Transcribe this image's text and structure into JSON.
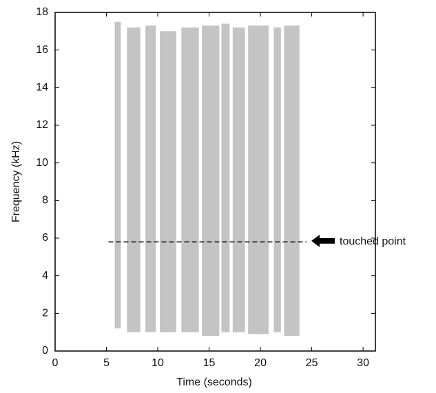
{
  "chart_data": {
    "type": "spectrogram",
    "xlabel": "Time (seconds)",
    "ylabel": "Frequency (kHz)",
    "xlim": [
      0,
      31.2
    ],
    "ylim": [
      0,
      18
    ],
    "xticks": [
      0,
      5,
      10,
      15,
      20,
      25,
      30
    ],
    "yticks": [
      0,
      2,
      4,
      6,
      8,
      10,
      12,
      14,
      16,
      18
    ],
    "color": "#555555",
    "bursts": [
      {
        "start": 5.8,
        "end": 6.4,
        "fmin": 1.2,
        "fmax": 17.5
      },
      {
        "start": 7.0,
        "end": 8.3,
        "fmin": 1.0,
        "fmax": 17.2
      },
      {
        "start": 8.8,
        "end": 9.8,
        "fmin": 1.0,
        "fmax": 17.3
      },
      {
        "start": 10.2,
        "end": 11.8,
        "fmin": 1.0,
        "fmax": 17.0
      },
      {
        "start": 12.3,
        "end": 14.0,
        "fmin": 1.0,
        "fmax": 17.2
      },
      {
        "start": 14.3,
        "end": 16.0,
        "fmin": 0.8,
        "fmax": 17.3
      },
      {
        "start": 16.2,
        "end": 17.0,
        "fmin": 1.0,
        "fmax": 17.4
      },
      {
        "start": 17.3,
        "end": 18.5,
        "fmin": 1.0,
        "fmax": 17.2
      },
      {
        "start": 18.8,
        "end": 20.8,
        "fmin": 0.9,
        "fmax": 17.3
      },
      {
        "start": 21.3,
        "end": 22.0,
        "fmin": 1.0,
        "fmax": 17.2
      },
      {
        "start": 22.3,
        "end": 23.8,
        "fmin": 0.8,
        "fmax": 17.3
      }
    ],
    "reference_line": {
      "y": 5.8,
      "x": [
        5.2,
        24.5
      ],
      "label": "touched point"
    }
  }
}
